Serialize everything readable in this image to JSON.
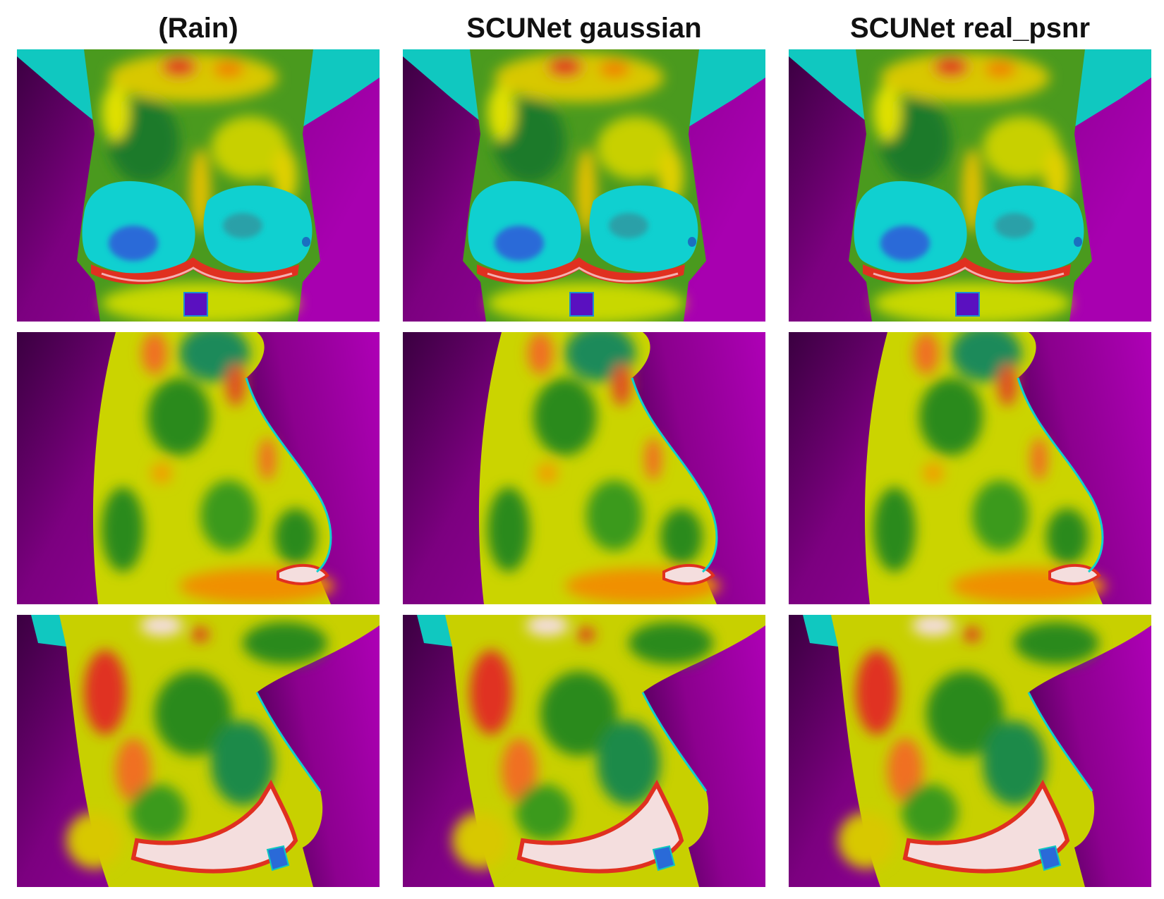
{
  "figure": {
    "columns": [
      {
        "title": "(Rain)"
      },
      {
        "title": "SCUNet gaussian"
      },
      {
        "title": "SCUNet real_psnr"
      }
    ],
    "rows": [
      {
        "view": "frontal"
      },
      {
        "view": "lateral-right"
      },
      {
        "view": "oblique-left"
      }
    ],
    "colors": {
      "background_magenta": "#a000a8",
      "background_dark": "#3a0040",
      "skin_green": "#2e8a1e",
      "skin_yellow": "#e3e000",
      "skin_orange": "#f0a000",
      "skin_red": "#e03020",
      "skin_white": "#f4dede",
      "skin_cyan": "#00d8d8",
      "skin_blue": "#2a6ad8"
    }
  }
}
